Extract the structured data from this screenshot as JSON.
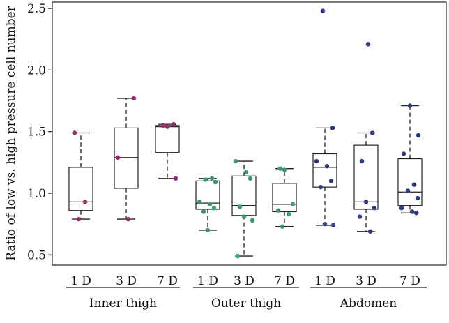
{
  "chart_data": {
    "type": "box",
    "title": "",
    "ylabel": "Ratio of low vs. high pressure cell number",
    "xlabel": "",
    "ylim": [
      0.42,
      2.55
    ],
    "yticks": [
      0.5,
      1.0,
      1.5,
      2.0,
      2.5
    ],
    "ytick_labels": [
      "0.5",
      "1.0",
      "1.5",
      "2.0",
      "2.5"
    ],
    "grid": false,
    "legend": "none",
    "groups": [
      {
        "name": "Inner thigh",
        "color": "#9c2c6e",
        "boxes": [
          {
            "label": "1 D",
            "whisker_low": 0.79,
            "q1": 0.86,
            "median": 0.93,
            "q3": 1.21,
            "whisker_high": 1.49,
            "points": [
              1.49,
              0.93,
              0.79
            ]
          },
          {
            "label": "3 D",
            "whisker_low": 0.79,
            "q1": 1.04,
            "median": 1.29,
            "q3": 1.53,
            "whisker_high": 1.77,
            "points": [
              1.77,
              1.29,
              0.79
            ]
          },
          {
            "label": "7 D",
            "whisker_low": 1.12,
            "q1": 1.33,
            "median": 1.54,
            "q3": 1.55,
            "whisker_high": 1.56,
            "points": [
              1.56,
              1.55,
              1.54,
              1.12
            ]
          }
        ]
      },
      {
        "name": "Outer thigh",
        "color": "#3b9a6a",
        "boxes": [
          {
            "label": "1 D",
            "whisker_low": 0.7,
            "q1": 0.87,
            "median": 0.92,
            "q3": 1.1,
            "whisker_high": 1.12,
            "points": [
              1.12,
              1.11,
              1.09,
              0.93,
              0.91,
              0.88,
              0.85,
              0.7
            ]
          },
          {
            "label": "3 D",
            "whisker_low": 0.49,
            "q1": 0.82,
            "median": 0.9,
            "q3": 1.14,
            "whisker_high": 1.26,
            "points": [
              1.26,
              1.17,
              1.12,
              0.89,
              0.81,
              0.78,
              0.49
            ]
          },
          {
            "label": "7 D",
            "whisker_low": 0.73,
            "q1": 0.85,
            "median": 0.91,
            "q3": 1.08,
            "whisker_high": 1.2,
            "points": [
              1.2,
              1.19,
              0.91,
              0.86,
              0.83,
              0.73
            ]
          }
        ]
      },
      {
        "name": "Abdomen",
        "color": "#2e3a7e",
        "boxes": [
          {
            "label": "1 D",
            "whisker_low": 0.74,
            "q1": 1.05,
            "median": 1.21,
            "q3": 1.32,
            "whisker_high": 1.53,
            "points": [
              2.48,
              1.53,
              1.26,
              1.22,
              1.1,
              1.05,
              0.75,
              0.74
            ]
          },
          {
            "label": "3 D",
            "whisker_low": 0.69,
            "q1": 0.87,
            "median": 0.93,
            "q3": 1.39,
            "whisker_high": 1.49,
            "points": [
              2.21,
              1.49,
              1.26,
              0.93,
              0.88,
              0.81,
              0.69
            ]
          },
          {
            "label": "7 D",
            "whisker_low": 0.84,
            "q1": 0.9,
            "median": 1.01,
            "q3": 1.28,
            "whisker_high": 1.71,
            "points": [
              1.71,
              1.47,
              1.32,
              1.07,
              1.02,
              0.96,
              0.88,
              0.85,
              0.84
            ]
          }
        ]
      }
    ]
  }
}
